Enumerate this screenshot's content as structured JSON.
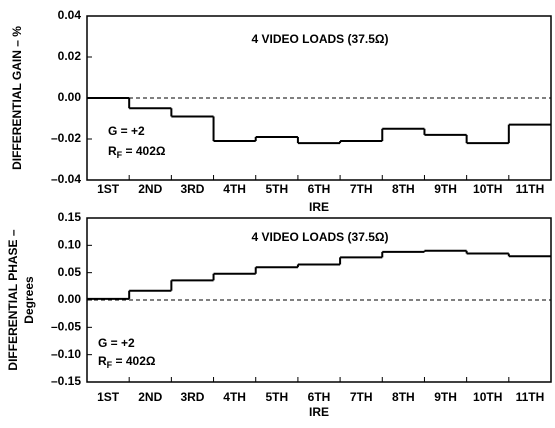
{
  "chart_data": [
    {
      "type": "step",
      "title": "4 VIDEO LOADS (37.5Ω)",
      "gain_label": "G = +2",
      "rf_label": {
        "main": "R",
        "sub": "F",
        "rest": " = 402Ω"
      },
      "ylabel": [
        "DIFFERENTIAL GAIN – %"
      ],
      "xlabel": "IRE",
      "categories": [
        "1ST",
        "2ND",
        "3RD",
        "4TH",
        "5TH",
        "6TH",
        "7TH",
        "8TH",
        "9TH",
        "10TH",
        "11TH"
      ],
      "values": [
        0.0,
        -0.005,
        -0.009,
        -0.021,
        -0.019,
        -0.022,
        -0.021,
        -0.015,
        -0.018,
        -0.022,
        -0.013
      ],
      "color": "#000000",
      "ylim": [
        -0.04,
        0.04
      ],
      "yticks": [
        0.04,
        0.02,
        {
          "value": 0,
          "label": "0.00"
        },
        {
          "value": -0.02,
          "label": "–0.02"
        },
        {
          "value": -0.04,
          "label": "–0.04"
        }
      ],
      "zero_line": true
    },
    {
      "type": "step",
      "title": "4 VIDEO LOADS (37.5Ω)",
      "gain_label": "G = +2",
      "rf_label": {
        "main": "R",
        "sub": "F",
        "rest": " = 402Ω"
      },
      "ylabel": [
        "DIFFERENTIAL PHASE –",
        "Degrees"
      ],
      "xlabel": "IRE",
      "categories": [
        "1ST",
        "2ND",
        "3RD",
        "4TH",
        "5TH",
        "6TH",
        "7TH",
        "8TH",
        "9TH",
        "10TH",
        "11TH"
      ],
      "values": [
        0.002,
        0.017,
        0.036,
        0.048,
        0.06,
        0.065,
        0.078,
        0.088,
        0.09,
        0.085,
        0.08
      ],
      "color": "#000000",
      "ylim": [
        -0.15,
        0.15
      ],
      "yticks": [
        0.15,
        {
          "value": 0.1,
          "label": "0.10"
        },
        0.05,
        {
          "value": 0,
          "label": "0.00"
        },
        {
          "value": -0.05,
          "label": "–0.05"
        },
        {
          "value": -0.1,
          "label": "–0.10"
        },
        {
          "value": -0.15,
          "label": "–0.15"
        }
      ],
      "zero_line": true
    }
  ]
}
